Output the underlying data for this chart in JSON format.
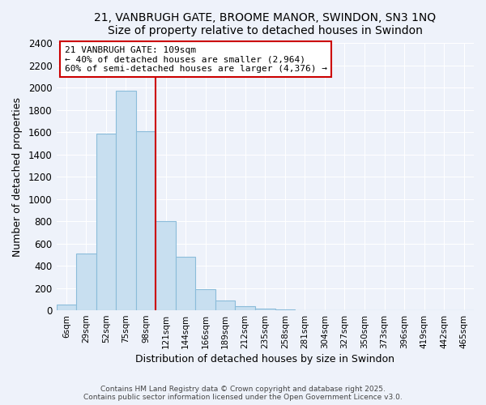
{
  "title": "21, VANBRUGH GATE, BROOME MANOR, SWINDON, SN3 1NQ",
  "subtitle": "Size of property relative to detached houses in Swindon",
  "xlabel": "Distribution of detached houses by size in Swindon",
  "ylabel": "Number of detached properties",
  "bar_labels": [
    "6sqm",
    "29sqm",
    "52sqm",
    "75sqm",
    "98sqm",
    "121sqm",
    "144sqm",
    "166sqm",
    "189sqm",
    "212sqm",
    "235sqm",
    "258sqm",
    "281sqm",
    "304sqm",
    "327sqm",
    "350sqm",
    "373sqm",
    "396sqm",
    "419sqm",
    "442sqm",
    "465sqm"
  ],
  "bar_values": [
    50,
    510,
    1590,
    1970,
    1610,
    800,
    480,
    190,
    90,
    35,
    15,
    5,
    2,
    1,
    0,
    0,
    0,
    0,
    0,
    0,
    0
  ],
  "bar_color": "#c8dff0",
  "bar_edge_color": "#8bbcda",
  "vline_label": "21 VANBRUGH GATE: 109sqm",
  "annotation_line1": "← 40% of detached houses are smaller (2,964)",
  "annotation_line2": "60% of semi-detached houses are larger (4,376) →",
  "box_color": "#ffffff",
  "box_edge_color": "#cc0000",
  "vline_color": "#cc0000",
  "ylim": [
    0,
    2400
  ],
  "yticks": [
    0,
    200,
    400,
    600,
    800,
    1000,
    1200,
    1400,
    1600,
    1800,
    2000,
    2200,
    2400
  ],
  "footer_line1": "Contains HM Land Registry data © Crown copyright and database right 2025.",
  "footer_line2": "Contains public sector information licensed under the Open Government Licence v3.0.",
  "bg_color": "#eef2fa",
  "grid_color": "#ffffff"
}
